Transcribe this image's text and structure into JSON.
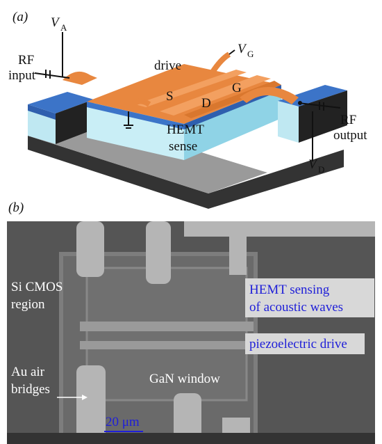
{
  "panel_a": {
    "label": "(a)",
    "va": {
      "symbol": "V",
      "subscript": "A"
    },
    "rf_input": [
      "RF",
      "input"
    ],
    "drive": "drive",
    "vg": {
      "symbol": "V",
      "subscript": "G"
    },
    "gate": "G",
    "source": "S",
    "drain": "D",
    "hemt_sense": [
      "HEMT",
      "sense"
    ],
    "rf_output": [
      "RF",
      "output"
    ],
    "vd": {
      "symbol": "V",
      "subscript": "D"
    }
  },
  "panel_b": {
    "label": "(b)",
    "si_cmos": [
      "Si CMOS",
      "region"
    ],
    "hemt_sensing": [
      "HEMT sensing",
      "of acoustic waves"
    ],
    "piezo_drive": "piezoelectric drive",
    "gan_window": "GaN window",
    "au_bridges": [
      "Au air",
      "bridges"
    ],
    "scale_bar": "20 μm"
  }
}
